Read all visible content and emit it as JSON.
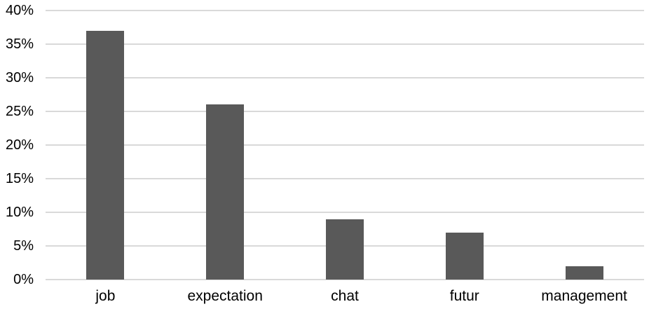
{
  "chart_data": {
    "type": "bar",
    "categories": [
      "job",
      "expectation",
      "chat",
      "futur",
      "management"
    ],
    "values": [
      37,
      26,
      9,
      7,
      2
    ],
    "title": "",
    "xlabel": "",
    "ylabel": "",
    "ylim": [
      0,
      40
    ],
    "ytick_step": 5,
    "ytick_labels": [
      "0%",
      "5%",
      "10%",
      "15%",
      "20%",
      "25%",
      "30%",
      "35%",
      "40%"
    ],
    "value_suffix": "%",
    "grid": true,
    "legend": false
  },
  "colors": {
    "bar": "#595959",
    "gridline": "#d9d9d9",
    "axis_text": "#000000",
    "background": "#ffffff"
  }
}
